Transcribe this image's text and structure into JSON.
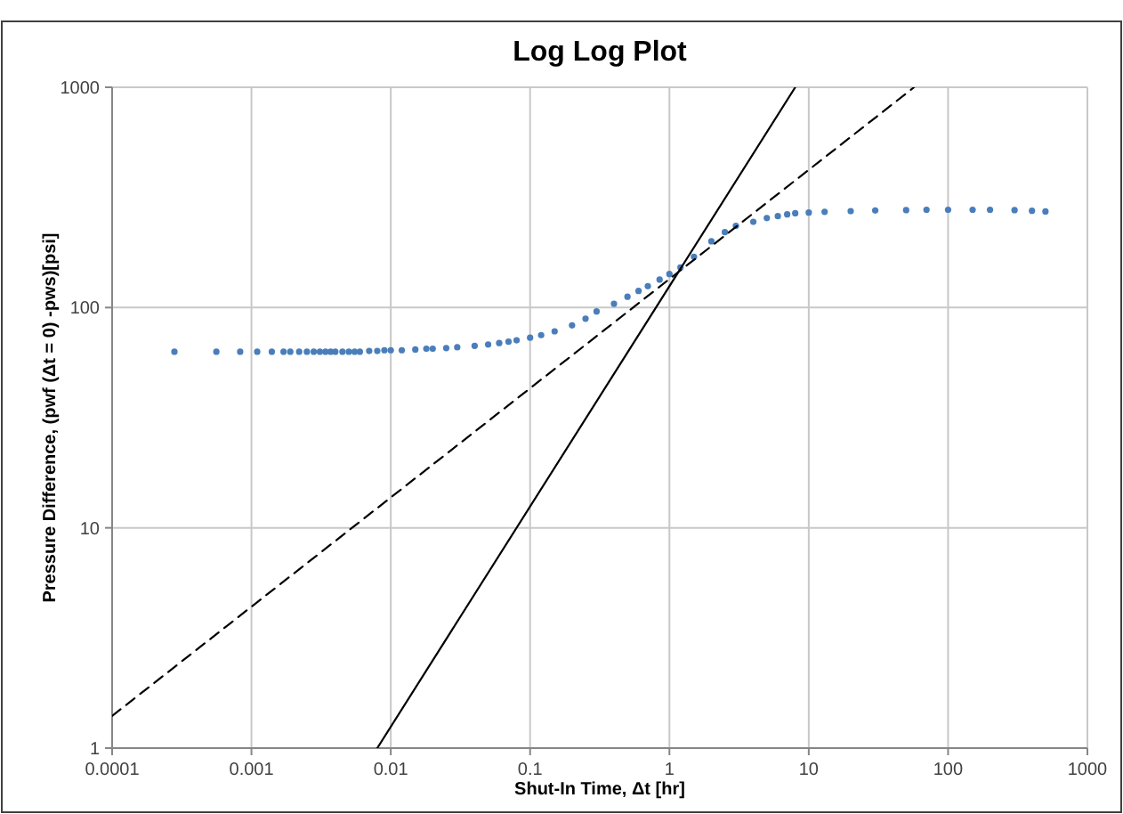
{
  "chart_data": {
    "type": "scatter",
    "title": "Log Log Plot",
    "xlabel": "Shut-In Time, Δt [hr]",
    "ylabel": "Pressure Difference, (pwf (Δt = 0) -pws)[psi]",
    "log": "xy",
    "grid": true,
    "xlim": [
      0.0001,
      1000
    ],
    "ylim": [
      1,
      1000
    ],
    "xticks": [
      0.0001,
      0.001,
      0.01,
      0.1,
      1,
      10,
      100,
      1000
    ],
    "yticks": [
      1,
      10,
      100,
      1000
    ],
    "series": [
      {
        "marker": "circle",
        "color": "#4a7ebb",
        "x": [
          0.00028,
          0.00056,
          0.00083,
          0.0011,
          0.0014,
          0.0017,
          0.0019,
          0.0022,
          0.0025,
          0.0028,
          0.0031,
          0.0034,
          0.0037,
          0.004,
          0.0045,
          0.005,
          0.0055,
          0.006,
          0.007,
          0.008,
          0.009,
          0.01,
          0.012,
          0.015,
          0.018,
          0.02,
          0.025,
          0.03,
          0.04,
          0.05,
          0.06,
          0.07,
          0.08,
          0.1,
          0.12,
          0.15,
          0.2,
          0.25,
          0.3,
          0.4,
          0.5,
          0.6,
          0.7,
          0.85,
          1,
          1.2,
          1.5,
          2,
          2.5,
          3,
          4,
          5,
          6,
          7,
          8,
          10,
          13,
          20,
          30,
          50,
          70,
          100,
          150,
          200,
          300,
          400,
          500
        ],
        "values": [
          63,
          63,
          63,
          63,
          63,
          63,
          63,
          63,
          63,
          63,
          63,
          63,
          63,
          63,
          63,
          63,
          63,
          63,
          63.5,
          63.5,
          64,
          64,
          64,
          64.5,
          65,
          65,
          65.5,
          66,
          67,
          68,
          69,
          70,
          71,
          73,
          75,
          78,
          83,
          89,
          96,
          104,
          112,
          119,
          125,
          134,
          142,
          152,
          170,
          200,
          220,
          235,
          245,
          255,
          260,
          265,
          268,
          270,
          272,
          274,
          276,
          277,
          278,
          278,
          278,
          278,
          277,
          275,
          273
        ]
      },
      {
        "type": "line",
        "marker": "none",
        "color": "#000000",
        "line_style": "solid",
        "x": [
          0.008,
          8
        ],
        "values": [
          1,
          1000
        ]
      },
      {
        "type": "line",
        "marker": "none",
        "color": "#000000",
        "line_style": "dashed",
        "x": [
          0.0001,
          57
        ],
        "values": [
          1.4,
          1000
        ]
      }
    ]
  }
}
